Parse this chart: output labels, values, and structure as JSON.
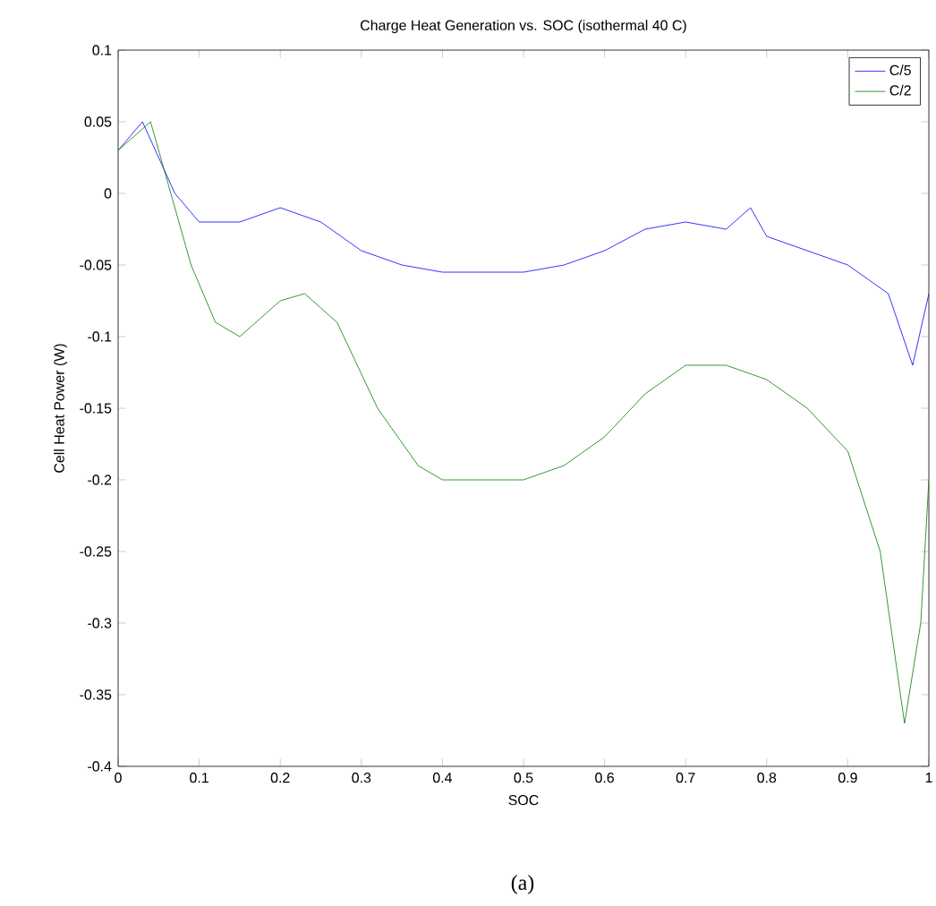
{
  "chart_data": {
    "type": "line",
    "title": "Charge Heat Generation vs. SOC (isothermal 40 C)",
    "xlabel": "SOC",
    "ylabel": "Cell Heat Power (W)",
    "annotations": [
      "(a)"
    ],
    "xlim": [
      0,
      1
    ],
    "ylim": [
      -0.4,
      0.1
    ],
    "xticks": [
      0,
      0.1,
      0.2,
      0.3,
      0.4,
      0.5,
      0.6,
      0.7,
      0.8,
      0.9,
      1
    ],
    "yticks": [
      -0.4,
      -0.35,
      -0.3,
      -0.25,
      -0.2,
      -0.15,
      -0.1,
      -0.05,
      0,
      0.05,
      0.1
    ],
    "legend": "top right",
    "grid": false,
    "marker": "none",
    "line_style": "solid",
    "series": [
      {
        "name": "C/5",
        "color": "#0000ff",
        "x": [
          0,
          0.03,
          0.07,
          0.1,
          0.15,
          0.2,
          0.25,
          0.3,
          0.35,
          0.4,
          0.5,
          0.55,
          0.6,
          0.65,
          0.7,
          0.75,
          0.78,
          0.8,
          0.85,
          0.9,
          0.95,
          0.98,
          1
        ],
        "values": [
          0.03,
          0.05,
          0,
          -0.02,
          -0.02,
          -0.01,
          -0.02,
          -0.04,
          -0.05,
          -0.055,
          -0.055,
          -0.05,
          -0.04,
          -0.025,
          -0.02,
          -0.025,
          -0.01,
          -0.03,
          -0.04,
          -0.05,
          -0.07,
          -0.12,
          -0.07
        ]
      },
      {
        "name": "C/2",
        "color": "#008000",
        "x": [
          0,
          0.04,
          0.06,
          0.09,
          0.12,
          0.15,
          0.2,
          0.23,
          0.27,
          0.32,
          0.37,
          0.4,
          0.5,
          0.55,
          0.6,
          0.65,
          0.7,
          0.75,
          0.8,
          0.85,
          0.9,
          0.94,
          0.97,
          0.99,
          1
        ],
        "values": [
          0.03,
          0.05,
          0.01,
          -0.05,
          -0.09,
          -0.1,
          -0.075,
          -0.07,
          -0.09,
          -0.15,
          -0.19,
          -0.2,
          -0.2,
          -0.19,
          -0.17,
          -0.14,
          -0.12,
          -0.12,
          -0.13,
          -0.15,
          -0.18,
          -0.25,
          -0.37,
          -0.3,
          -0.2
        ]
      }
    ]
  }
}
